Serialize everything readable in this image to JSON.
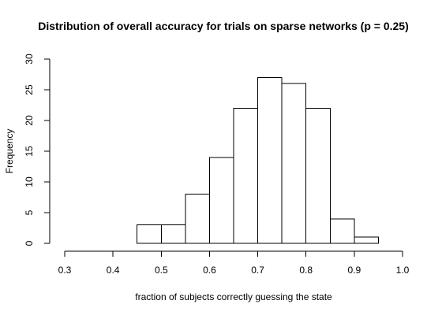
{
  "chart_data": {
    "type": "bar",
    "title": "Distribution of overall accuracy for trials on sparse networks (p = 0.25)",
    "xlabel": "fraction of subjects correctly guessing the state",
    "ylabel": "Frequency",
    "grid": false,
    "xlim": [
      0.3,
      1.0
    ],
    "ylim": [
      0,
      30
    ],
    "xticks": [
      "0.3",
      "0.4",
      "0.5",
      "0.6",
      "0.7",
      "0.8",
      "0.9",
      "1.0"
    ],
    "yticks": [
      "0",
      "5",
      "10",
      "15",
      "20",
      "25",
      "30"
    ],
    "bins": [
      {
        "x0": 0.45,
        "x1": 0.5,
        "value": 3
      },
      {
        "x0": 0.5,
        "x1": 0.55,
        "value": 3
      },
      {
        "x0": 0.55,
        "x1": 0.6,
        "value": 8
      },
      {
        "x0": 0.6,
        "x1": 0.65,
        "value": 14
      },
      {
        "x0": 0.65,
        "x1": 0.7,
        "value": 22
      },
      {
        "x0": 0.7,
        "x1": 0.75,
        "value": 27
      },
      {
        "x0": 0.75,
        "x1": 0.8,
        "value": 26
      },
      {
        "x0": 0.8,
        "x1": 0.85,
        "value": 22
      },
      {
        "x0": 0.85,
        "x1": 0.9,
        "value": 4
      },
      {
        "x0": 0.9,
        "x1": 0.95,
        "value": 1
      }
    ]
  }
}
